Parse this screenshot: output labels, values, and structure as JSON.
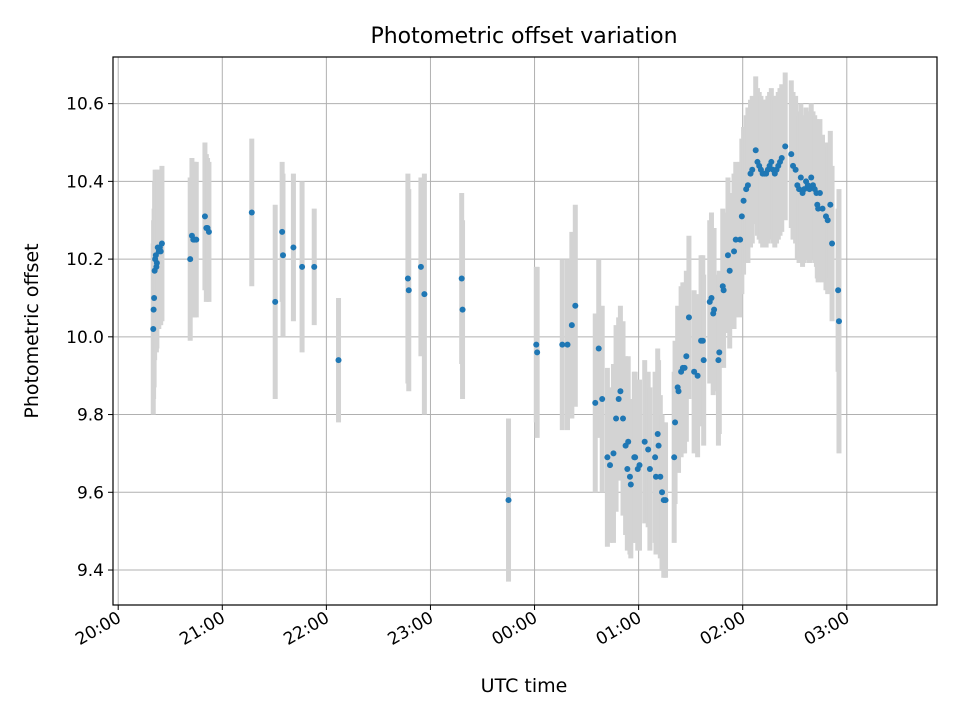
{
  "chart_data": {
    "type": "scatter",
    "title": "Photometric offset variation",
    "xlabel": "UTC time",
    "ylabel": "Photometric offset",
    "x_unit": "minutes after 20:00 UTC",
    "xlim": [
      -3,
      472
    ],
    "ylim": [
      9.31,
      10.72
    ],
    "xticks": [
      0,
      60,
      120,
      180,
      240,
      300,
      360,
      420
    ],
    "xtick_labels": [
      "20:00",
      "21:00",
      "22:00",
      "23:00",
      "00:00",
      "01:00",
      "02:00",
      "03:00"
    ],
    "yticks": [
      9.4,
      9.6,
      9.8,
      10.0,
      10.2,
      10.4,
      10.6
    ],
    "ytick_labels": [
      "9.4",
      "9.6",
      "9.8",
      "10.0",
      "10.2",
      "10.4",
      "10.6"
    ],
    "grid": true,
    "marker_color": "#1f77b4",
    "errorbar_color": "#d3d3d3",
    "series": [
      {
        "points": [
          [
            20.2,
            10.02,
            0.22
          ],
          [
            20.4,
            10.07,
            0.23
          ],
          [
            20.7,
            10.1,
            0.23
          ],
          [
            21.0,
            10.17,
            0.23
          ],
          [
            21.3,
            10.2,
            0.23
          ],
          [
            21.7,
            10.21,
            0.22
          ],
          [
            22.0,
            10.18,
            0.22
          ],
          [
            22.3,
            10.19,
            0.22
          ],
          [
            22.8,
            10.23,
            0.2
          ],
          [
            23.4,
            10.22,
            0.2
          ],
          [
            24.0,
            10.23,
            0.2
          ],
          [
            24.5,
            10.22,
            0.19
          ],
          [
            25.2,
            10.24,
            0.2
          ],
          [
            41.5,
            10.2,
            0.21
          ],
          [
            42.5,
            10.26,
            0.2
          ],
          [
            43.3,
            10.25,
            0.2
          ],
          [
            44.0,
            10.25,
            0.2
          ],
          [
            45.0,
            10.25,
            0.2
          ],
          [
            50.0,
            10.31,
            0.19
          ],
          [
            50.8,
            10.28,
            0.19
          ],
          [
            51.5,
            10.28,
            0.18
          ],
          [
            52.3,
            10.27,
            0.18
          ],
          [
            77.0,
            10.32,
            0.19
          ],
          [
            90.5,
            10.09,
            0.25
          ],
          [
            94.5,
            10.27,
            0.18
          ],
          [
            95.0,
            10.21,
            0.21
          ],
          [
            101.0,
            10.23,
            0.19
          ],
          [
            106.0,
            10.18,
            0.22
          ],
          [
            113.0,
            10.18,
            0.15
          ],
          [
            127.0,
            9.94,
            0.16
          ],
          [
            167.0,
            10.15,
            0.27
          ],
          [
            167.5,
            10.12,
            0.26
          ],
          [
            174.5,
            10.18,
            0.23
          ],
          [
            176.5,
            10.11,
            0.31
          ],
          [
            198.0,
            10.15,
            0.22
          ],
          [
            198.5,
            10.07,
            0.23
          ],
          [
            225.0,
            9.58,
            0.21
          ],
          [
            241.0,
            9.98,
            0.2
          ],
          [
            241.5,
            9.96,
            0.22
          ],
          [
            256.0,
            9.98,
            0.22
          ],
          [
            259.0,
            9.98,
            0.22
          ],
          [
            261.5,
            10.03,
            0.24
          ],
          [
            263.5,
            10.08,
            0.26
          ],
          [
            275.0,
            9.83,
            0.23
          ],
          [
            277.0,
            9.97,
            0.23
          ],
          [
            279.0,
            9.84,
            0.24
          ],
          [
            282.0,
            9.69,
            0.23
          ],
          [
            283.5,
            9.67,
            0.2
          ],
          [
            285.5,
            9.7,
            0.23
          ],
          [
            287.0,
            9.79,
            0.24
          ],
          [
            288.5,
            9.84,
            0.21
          ],
          [
            289.5,
            9.86,
            0.22
          ],
          [
            291.0,
            9.79,
            0.25
          ],
          [
            292.5,
            9.72,
            0.23
          ],
          [
            293.5,
            9.66,
            0.21
          ],
          [
            294.0,
            9.73,
            0.22
          ],
          [
            295.0,
            9.64,
            0.2
          ],
          [
            295.5,
            9.62,
            0.19
          ],
          [
            297.5,
            9.69,
            0.22
          ],
          [
            298.0,
            9.69,
            0.22
          ],
          [
            299.5,
            9.66,
            0.21
          ],
          [
            300.5,
            9.67,
            0.22
          ],
          [
            303.5,
            9.73,
            0.21
          ],
          [
            305.5,
            9.71,
            0.2
          ],
          [
            306.5,
            9.66,
            0.21
          ],
          [
            309.5,
            9.69,
            0.22
          ],
          [
            310.0,
            9.64,
            0.2
          ],
          [
            311.0,
            9.75,
            0.22
          ],
          [
            311.5,
            9.72,
            0.22
          ],
          [
            312.5,
            9.64,
            0.21
          ],
          [
            313.5,
            9.6,
            0.2
          ],
          [
            314.5,
            9.58,
            0.2
          ],
          [
            315.5,
            9.58,
            0.2
          ],
          [
            320.5,
            9.69,
            0.22
          ],
          [
            321.0,
            9.78,
            0.21
          ],
          [
            322.5,
            9.87,
            0.21
          ],
          [
            323.0,
            9.86,
            0.21
          ],
          [
            324.5,
            9.91,
            0.22
          ],
          [
            325.5,
            9.92,
            0.22
          ],
          [
            326.5,
            9.92,
            0.22
          ],
          [
            327.5,
            9.95,
            0.22
          ],
          [
            329.0,
            10.05,
            0.21
          ],
          [
            332.0,
            9.91,
            0.21
          ],
          [
            334.0,
            9.9,
            0.21
          ],
          [
            336.0,
            9.99,
            0.22
          ],
          [
            337.0,
            9.99,
            0.22
          ],
          [
            337.5,
            9.94,
            0.22
          ],
          [
            341.0,
            10.09,
            0.21
          ],
          [
            342.0,
            10.1,
            0.22
          ],
          [
            343.0,
            10.06,
            0.21
          ],
          [
            343.5,
            10.07,
            0.21
          ],
          [
            346.0,
            9.94,
            0.22
          ],
          [
            346.5,
            9.96,
            0.21
          ],
          [
            348.5,
            10.13,
            0.2
          ],
          [
            349.0,
            10.12,
            0.2
          ],
          [
            351.5,
            10.21,
            0.2
          ],
          [
            352.5,
            10.17,
            0.2
          ],
          [
            355.0,
            10.22,
            0.2
          ],
          [
            356.0,
            10.25,
            0.2
          ],
          [
            358.5,
            10.25,
            0.2
          ],
          [
            359.5,
            10.31,
            0.2
          ],
          [
            360.5,
            10.35,
            0.19
          ],
          [
            362.0,
            10.38,
            0.19
          ],
          [
            363.0,
            10.39,
            0.2
          ],
          [
            364.5,
            10.42,
            0.19
          ],
          [
            365.5,
            10.43,
            0.19
          ],
          [
            367.5,
            10.48,
            0.19
          ],
          [
            368.5,
            10.45,
            0.19
          ],
          [
            369.5,
            10.44,
            0.19
          ],
          [
            370.5,
            10.43,
            0.19
          ],
          [
            371.5,
            10.42,
            0.19
          ],
          [
            372.5,
            10.42,
            0.19
          ],
          [
            373.5,
            10.42,
            0.19
          ],
          [
            374.5,
            10.43,
            0.19
          ],
          [
            375.5,
            10.44,
            0.19
          ],
          [
            376.5,
            10.45,
            0.19
          ],
          [
            377.5,
            10.43,
            0.19
          ],
          [
            378.5,
            10.42,
            0.19
          ],
          [
            379.5,
            10.43,
            0.19
          ],
          [
            380.5,
            10.44,
            0.19
          ],
          [
            381.5,
            10.45,
            0.19
          ],
          [
            382.5,
            10.46,
            0.19
          ],
          [
            384.5,
            10.49,
            0.19
          ],
          [
            388.0,
            10.47,
            0.19
          ],
          [
            389.0,
            10.44,
            0.19
          ],
          [
            390.5,
            10.43,
            0.19
          ],
          [
            391.5,
            10.39,
            0.19
          ],
          [
            392.5,
            10.38,
            0.19
          ],
          [
            393.5,
            10.41,
            0.19
          ],
          [
            394.5,
            10.37,
            0.19
          ],
          [
            395.5,
            10.38,
            0.19
          ],
          [
            396.5,
            10.4,
            0.19
          ],
          [
            397.5,
            10.39,
            0.19
          ],
          [
            398.5,
            10.38,
            0.19
          ],
          [
            399.5,
            10.41,
            0.19
          ],
          [
            400.5,
            10.39,
            0.19
          ],
          [
            401.5,
            10.38,
            0.19
          ],
          [
            402.5,
            10.37,
            0.19
          ],
          [
            403.0,
            10.34,
            0.19
          ],
          [
            403.5,
            10.33,
            0.19
          ],
          [
            404.5,
            10.37,
            0.19
          ],
          [
            406.0,
            10.33,
            0.19
          ],
          [
            408.0,
            10.31,
            0.19
          ],
          [
            409.0,
            10.3,
            0.19
          ],
          [
            410.5,
            10.34,
            0.19
          ],
          [
            411.5,
            10.24,
            0.2
          ],
          [
            415.0,
            10.12,
            0.21
          ],
          [
            415.5,
            10.04,
            0.34
          ]
        ]
      }
    ]
  }
}
